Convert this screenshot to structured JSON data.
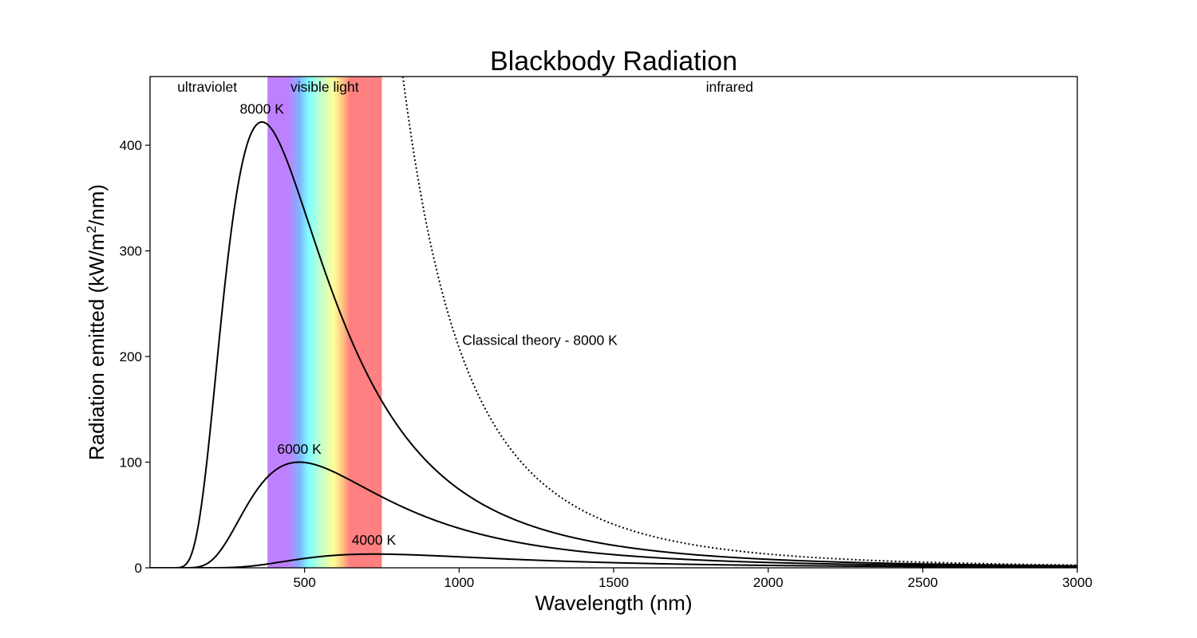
{
  "chart_data": {
    "type": "line",
    "title": "Blackbody Radiation",
    "xlabel": "Wavelength (nm)",
    "ylabel_main": "Radiation emitted (kW/m",
    "ylabel_sup": "2",
    "ylabel_end": "/nm)",
    "xlim": [
      0,
      3000
    ],
    "ylim": [
      0,
      465
    ],
    "xticks": [
      500,
      1000,
      1500,
      2000,
      2500,
      3000
    ],
    "yticks": [
      0,
      100,
      200,
      300,
      400
    ],
    "grid": false,
    "bands": [
      {
        "name": "ultraviolet",
        "label": "ultraviolet",
        "x_start": 0,
        "x_end": 380,
        "label_x": 185
      },
      {
        "name": "visible-light",
        "label": "visible light",
        "x_start": 380,
        "x_end": 750,
        "label_x": 565
      },
      {
        "name": "infrared",
        "label": "infrared",
        "x_start": 750,
        "x_end": 3000,
        "label_x": 1875
      }
    ],
    "series": [
      {
        "name": "8000 K",
        "label": "8000 K",
        "temperature_K": 8000,
        "style": "solid",
        "peak_x": 362,
        "peak_y": 422,
        "label_at": [
          0,
          430
        ]
      },
      {
        "name": "6000 K",
        "label": "6000 K",
        "temperature_K": 6000,
        "style": "solid",
        "peak_x": 483,
        "peak_y": 100,
        "label_at": [
          0,
          108
        ]
      },
      {
        "name": "4000 K",
        "label": "4000 K",
        "temperature_K": 4000,
        "style": "solid",
        "peak_x": 724,
        "peak_y": 13,
        "label_at": [
          0,
          22
        ]
      },
      {
        "name": "classical-8000",
        "label": "Classical theory - 8000 K",
        "temperature_K": 8000,
        "style": "dotted",
        "label_at": [
          1010,
          211
        ]
      }
    ],
    "colors": {
      "axis": "#000000",
      "curve": "#000000",
      "violet": "#bf80ff",
      "blue": "#80b3ff",
      "cyan": "#80ffff",
      "green": "#bfffd0",
      "yellow": "#ffff99",
      "orange": "#ffc080",
      "red": "#ff8080"
    }
  }
}
